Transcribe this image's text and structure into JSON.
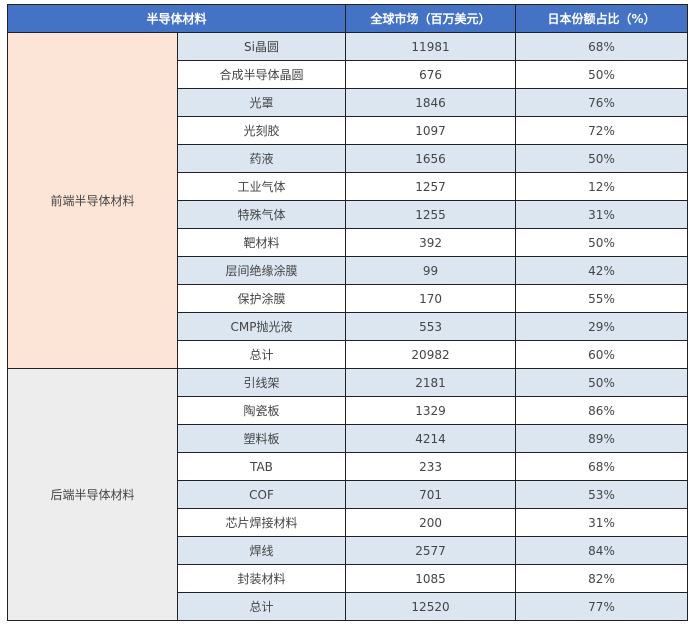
{
  "header": {
    "material": "半导体材料",
    "market": "全球市场（百万美元）",
    "share": "日本份额占比（%）"
  },
  "colors": {
    "header": "#4472c4",
    "front_group": "#fce4d6",
    "back_group": "#ededed",
    "row_alt": "#dce6f1"
  },
  "groups": [
    {
      "name": "前端半导体材料",
      "rows": [
        {
          "item": "Si晶圆",
          "market": "11981",
          "share": "68%"
        },
        {
          "item": "合成半导体晶圆",
          "market": "676",
          "share": "50%"
        },
        {
          "item": "光罩",
          "market": "1846",
          "share": "76%"
        },
        {
          "item": "光刻胶",
          "market": "1097",
          "share": "72%"
        },
        {
          "item": "药液",
          "market": "1656",
          "share": "50%"
        },
        {
          "item": "工业气体",
          "market": "1257",
          "share": "12%"
        },
        {
          "item": "特殊气体",
          "market": "1255",
          "share": "31%"
        },
        {
          "item": "靶材料",
          "market": "392",
          "share": "50%"
        },
        {
          "item": "层间绝缘涂膜",
          "market": "99",
          "share": "42%"
        },
        {
          "item": "保护涂膜",
          "market": "170",
          "share": "55%"
        },
        {
          "item": "CMP抛光液",
          "market": "553",
          "share": "29%"
        },
        {
          "item": "总计",
          "market": "20982",
          "share": "60%"
        }
      ]
    },
    {
      "name": "后端半导体材料",
      "rows": [
        {
          "item": "引线架",
          "market": "2181",
          "share": "50%"
        },
        {
          "item": "陶瓷板",
          "market": "1329",
          "share": "86%"
        },
        {
          "item": "塑料板",
          "market": "4214",
          "share": "89%"
        },
        {
          "item": "TAB",
          "market": "233",
          "share": "68%"
        },
        {
          "item": "COF",
          "market": "701",
          "share": "53%"
        },
        {
          "item": "芯片焊接材料",
          "market": "200",
          "share": "31%"
        },
        {
          "item": "焊线",
          "market": "2577",
          "share": "84%"
        },
        {
          "item": "封装材料",
          "market": "1085",
          "share": "82%"
        },
        {
          "item": "总计",
          "market": "12520",
          "share": "77%"
        }
      ]
    }
  ]
}
